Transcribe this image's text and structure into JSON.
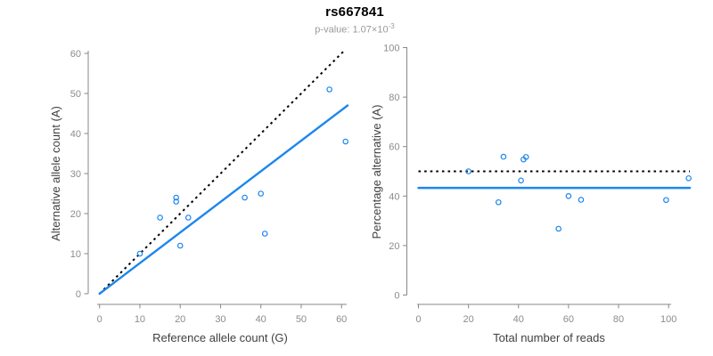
{
  "header": {
    "title": "rs667841",
    "p_label": "p-value: 1.07×10",
    "p_exponent": "-3"
  },
  "colors": {
    "accent_blue": "#1C86EE",
    "line_black": "#000000",
    "axis_gray": "#878787",
    "tick_label_gray": "#8c8c8c",
    "axis_title_gray": "#404040",
    "subtitle_gray": "#9a9a9a"
  },
  "chart_data": [
    {
      "type": "scatter",
      "name": "allele-count-scatter",
      "xlabel": "Reference allele count (G)",
      "ylabel": "Alternative allele count (A)",
      "xlim": [
        0,
        61.5
      ],
      "ylim": [
        0,
        61
      ],
      "xticks": [
        0,
        10,
        20,
        30,
        40,
        50,
        60
      ],
      "yticks": [
        0,
        10,
        20,
        30,
        40,
        50,
        60
      ],
      "grid": false,
      "points": [
        [
          10,
          10
        ],
        [
          15,
          19
        ],
        [
          19,
          23
        ],
        [
          19,
          24
        ],
        [
          20,
          12
        ],
        [
          22,
          19
        ],
        [
          36,
          24
        ],
        [
          40,
          25
        ],
        [
          41,
          15
        ],
        [
          57,
          51
        ],
        [
          61,
          38
        ]
      ],
      "lines": [
        {
          "name": "identity-line",
          "style": "dotted",
          "color": "line_black",
          "x1": 0,
          "y1": 0,
          "x2": 60.7,
          "y2": 60.7
        },
        {
          "name": "fit-line",
          "style": "solid",
          "color": "accent_blue",
          "x1": 0,
          "y1": 0,
          "x2": 61.5,
          "y2": 47
        }
      ]
    },
    {
      "type": "scatter",
      "name": "percentage-reads-scatter",
      "xlabel": "Total number of reads",
      "ylabel": "Percentage alternative (A)",
      "xlim": [
        0,
        108.5
      ],
      "ylim": [
        0,
        100
      ],
      "xticks": [
        0,
        20,
        40,
        60,
        80,
        100
      ],
      "yticks": [
        0,
        20,
        40,
        60,
        80,
        100
      ],
      "grid": false,
      "points": [
        [
          20,
          50
        ],
        [
          32,
          37.5
        ],
        [
          34,
          55.9
        ],
        [
          41,
          46.3
        ],
        [
          42,
          54.8
        ],
        [
          43,
          55.8
        ],
        [
          56,
          26.8
        ],
        [
          60,
          40
        ],
        [
          65,
          38.5
        ],
        [
          99,
          38.4
        ],
        [
          108,
          47.2
        ]
      ],
      "lines": [
        {
          "name": "expected-percentage-line",
          "style": "dotted",
          "color": "line_black",
          "x1": 0,
          "y1": 50,
          "x2": 108.5,
          "y2": 50
        },
        {
          "name": "mean-percentage-line",
          "style": "solid",
          "color": "accent_blue",
          "x1": 0,
          "y1": 43.3,
          "x2": 108.5,
          "y2": 43.3
        }
      ]
    }
  ]
}
